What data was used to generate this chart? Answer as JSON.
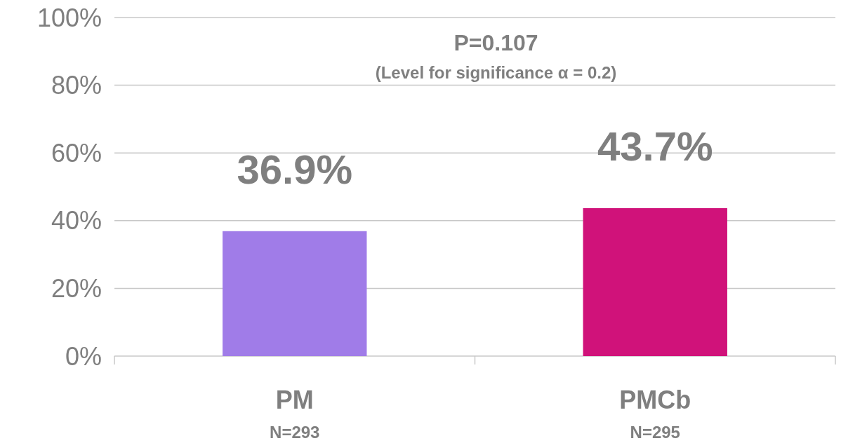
{
  "chart_data": {
    "type": "bar",
    "categories": [
      "PM",
      "PMCb"
    ],
    "values": [
      36.9,
      43.7
    ],
    "colors": [
      "#a07ce8",
      "#d0127a"
    ],
    "value_labels": [
      "36.9%",
      "43.7%"
    ],
    "ylim": [
      0,
      100
    ],
    "yticks": [
      {
        "value": 0,
        "label": "0%"
      },
      {
        "value": 20,
        "label": "20%"
      },
      {
        "value": 40,
        "label": "40%"
      },
      {
        "value": 60,
        "label": "60%"
      },
      {
        "value": 80,
        "label": "80%"
      },
      {
        "value": 100,
        "label": "100%"
      }
    ],
    "grid": "y",
    "annotations": [
      "P=0.107",
      "(Level for significance α = 0.2)",
      "N=293",
      "N=295"
    ]
  }
}
